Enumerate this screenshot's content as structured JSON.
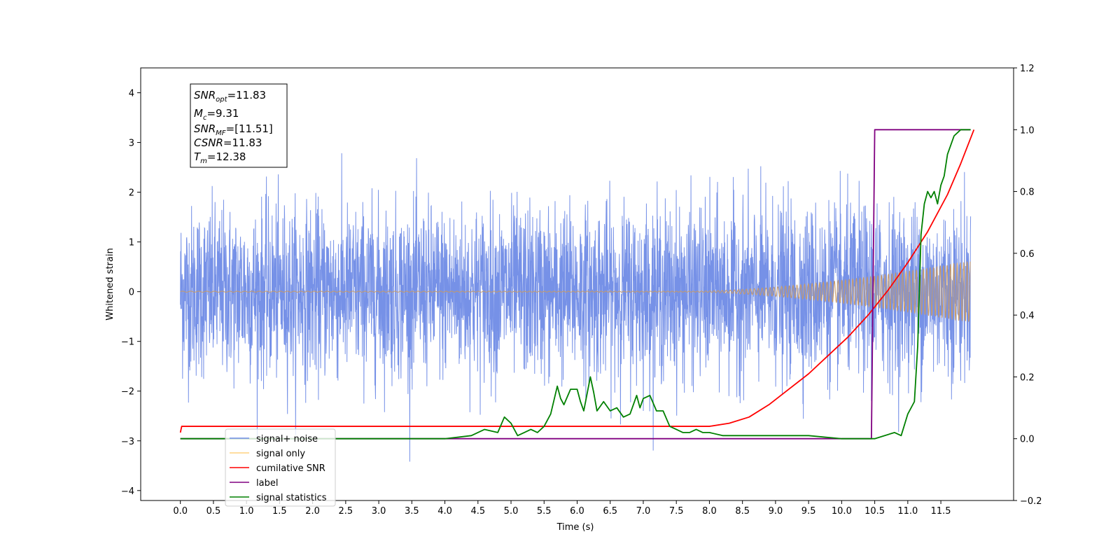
{
  "chart_data": {
    "type": "line",
    "xlabel": "Time (s)",
    "ylabel": "Whitened strain",
    "xlim": [
      -0.6,
      12.6
    ],
    "ylim": [
      -4.2,
      4.5
    ],
    "ylim_right": [
      -0.2,
      1.2
    ],
    "xticks": [
      "0.0",
      "0.5",
      "1.0",
      "1.5",
      "2.0",
      "2.5",
      "3.0",
      "3.5",
      "4.0",
      "4.5",
      "5.0",
      "5.5",
      "6.0",
      "6.5",
      "7.0",
      "7.5",
      "8.0",
      "8.5",
      "9.0",
      "9.5",
      "10.0",
      "10.5",
      "11.0",
      "11.5"
    ],
    "yticks_left": [
      "4",
      "3",
      "2",
      "1",
      "0",
      "−1",
      "−2",
      "−3",
      "−4"
    ],
    "yticks_right": [
      "1.2",
      "1.0",
      "0.8",
      "0.6",
      "0.4",
      "0.2",
      "0.0",
      "−0.2"
    ],
    "stats": {
      "snr_opt": "11.83",
      "mc": "9.31",
      "snr_mf": "[11.51]",
      "csnr": "11.83",
      "tm": "12.38"
    },
    "legend": [
      "signal+ noise",
      "signal only",
      "cumilative SNR",
      "label",
      "signal statistics"
    ],
    "legend_placement": "lower-left",
    "grid": false,
    "colors": {
      "signal_noise": "#6f8be6",
      "signal_only": "#ffa500",
      "cumulative_snr": "#ff0000",
      "label": "#800080",
      "signal_statistics": "#008000"
    },
    "series": [
      {
        "name": "cumilative SNR",
        "axis": "right",
        "x": [
          0.0,
          0.02,
          8.0,
          8.3,
          8.6,
          8.9,
          9.2,
          9.5,
          9.8,
          10.1,
          10.4,
          10.7,
          11.0,
          11.3,
          11.6,
          11.8,
          12.0
        ],
        "y": [
          0.02,
          0.04,
          0.04,
          0.05,
          0.07,
          0.11,
          0.16,
          0.21,
          0.27,
          0.33,
          0.4,
          0.48,
          0.57,
          0.67,
          0.79,
          0.89,
          1.0
        ]
      },
      {
        "name": "label",
        "axis": "right",
        "x": [
          0.0,
          10.45,
          10.5,
          11.95
        ],
        "y": [
          0.0,
          0.0,
          1.0,
          1.0
        ]
      },
      {
        "name": "signal statistics",
        "axis": "right",
        "x": [
          0.0,
          3.5,
          4.0,
          4.4,
          4.6,
          4.8,
          4.9,
          5.0,
          5.1,
          5.2,
          5.3,
          5.4,
          5.5,
          5.6,
          5.7,
          5.75,
          5.8,
          5.9,
          6.0,
          6.05,
          6.1,
          6.2,
          6.25,
          6.3,
          6.4,
          6.5,
          6.6,
          6.7,
          6.8,
          6.9,
          6.95,
          7.0,
          7.1,
          7.2,
          7.3,
          7.4,
          7.5,
          7.6,
          7.7,
          7.8,
          7.9,
          8.0,
          8.2,
          8.5,
          9.0,
          9.5,
          10.0,
          10.5,
          10.8,
          10.9,
          11.0,
          11.1,
          11.15,
          11.2,
          11.25,
          11.3,
          11.35,
          11.4,
          11.45,
          11.5,
          11.55,
          11.6,
          11.7,
          11.8,
          11.95
        ],
        "y": [
          0.0,
          0.0,
          0.0,
          0.01,
          0.03,
          0.02,
          0.07,
          0.05,
          0.01,
          0.02,
          0.03,
          0.02,
          0.04,
          0.08,
          0.17,
          0.13,
          0.11,
          0.16,
          0.16,
          0.12,
          0.09,
          0.2,
          0.15,
          0.09,
          0.12,
          0.09,
          0.1,
          0.07,
          0.08,
          0.14,
          0.1,
          0.13,
          0.14,
          0.09,
          0.09,
          0.04,
          0.03,
          0.02,
          0.02,
          0.03,
          0.02,
          0.02,
          0.01,
          0.01,
          0.01,
          0.01,
          0.0,
          0.0,
          0.02,
          0.01,
          0.08,
          0.12,
          0.3,
          0.66,
          0.76,
          0.8,
          0.78,
          0.8,
          0.76,
          0.82,
          0.85,
          0.92,
          0.98,
          1.0,
          1.0
        ]
      }
    ]
  }
}
